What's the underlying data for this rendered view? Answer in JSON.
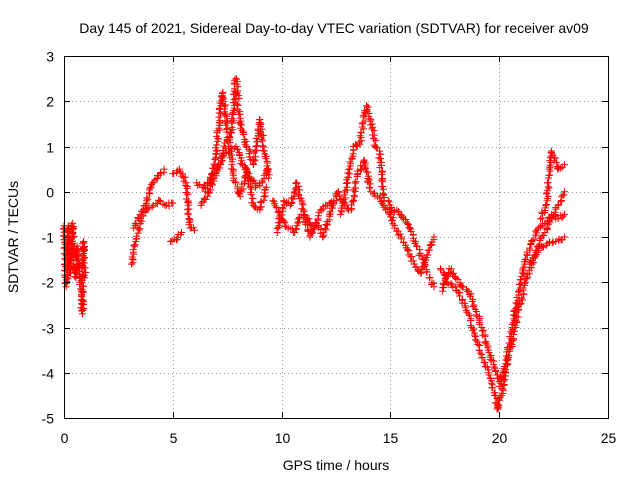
{
  "chart_data": {
    "type": "scatter",
    "title": "Day 145 of 2021, Sidereal Day-to-day VTEC variation (SDTVAR) for receiver av09",
    "xlabel": "GPS time / hours",
    "ylabel": "SDTVAR / TECUs",
    "xlim": [
      0,
      25
    ],
    "ylim": [
      -5,
      3
    ],
    "xticks": [
      0,
      5,
      10,
      15,
      20,
      25
    ],
    "yticks": [
      -5,
      -4,
      -3,
      -2,
      -1,
      0,
      1,
      2,
      3
    ],
    "grid": true,
    "marker": "+",
    "color": "#ff0000",
    "series": [
      {
        "name": "SDTVAR",
        "segments": [
          [
            [
              0.0,
              -0.75
            ],
            [
              0.1,
              -2.1
            ],
            [
              0.15,
              -1.85
            ],
            [
              0.2,
              -0.75
            ],
            [
              0.3,
              -1.8
            ],
            [
              0.4,
              -0.7
            ],
            [
              0.45,
              -1.6
            ],
            [
              0.55,
              -1.9
            ],
            [
              0.6,
              -1.2
            ],
            [
              0.7,
              -1.75
            ],
            [
              0.8,
              -2.2
            ],
            [
              0.85,
              -2.7
            ],
            [
              0.9,
              -1.1
            ],
            [
              0.95,
              -1.9
            ]
          ],
          [
            [
              3.1,
              -1.6
            ],
            [
              3.3,
              -1.1
            ],
            [
              3.5,
              -0.7
            ],
            [
              3.8,
              -0.4
            ],
            [
              4.1,
              -0.3
            ],
            [
              4.4,
              -0.2
            ],
            [
              4.7,
              -0.3
            ],
            [
              5.0,
              -0.25
            ]
          ],
          [
            [
              3.2,
              -0.8
            ],
            [
              3.5,
              -0.5
            ],
            [
              3.8,
              -0.2
            ],
            [
              4.0,
              0.1
            ],
            [
              4.3,
              0.3
            ],
            [
              4.6,
              0.5
            ]
          ],
          [
            [
              4.9,
              -1.1
            ],
            [
              5.2,
              -1.05
            ],
            [
              5.4,
              -0.9
            ]
          ],
          [
            [
              5.0,
              0.4
            ],
            [
              5.3,
              0.5
            ],
            [
              5.6,
              0.2
            ],
            [
              5.8,
              -0.8
            ],
            [
              6.0,
              -0.85
            ]
          ],
          [
            [
              6.1,
              0.2
            ],
            [
              6.4,
              0.1
            ],
            [
              6.7,
              0.2
            ],
            [
              7.0,
              0.5
            ],
            [
              7.3,
              0.8
            ],
            [
              7.6,
              0.9
            ],
            [
              7.9,
              1.0
            ],
            [
              8.2,
              0.6
            ],
            [
              8.5,
              0.4
            ],
            [
              8.8,
              0.1
            ],
            [
              9.1,
              0.2
            ],
            [
              9.4,
              0.5
            ]
          ],
          [
            [
              6.3,
              -0.3
            ],
            [
              6.6,
              -0.1
            ],
            [
              6.9,
              0.3
            ],
            [
              7.2,
              0.6
            ],
            [
              7.5,
              1.2
            ],
            [
              7.7,
              1.3
            ],
            [
              7.9,
              2.5
            ],
            [
              8.1,
              1.5
            ],
            [
              8.4,
              1.0
            ],
            [
              8.7,
              0.6
            ],
            [
              9.0,
              1.6
            ],
            [
              9.2,
              0.9
            ],
            [
              9.4,
              0.3
            ]
          ],
          [
            [
              6.5,
              0.0
            ],
            [
              6.8,
              0.4
            ],
            [
              7.0,
              0.9
            ],
            [
              7.2,
              1.9
            ],
            [
              7.3,
              2.2
            ],
            [
              7.5,
              1.4
            ],
            [
              7.8,
              0.3
            ],
            [
              8.1,
              -0.1
            ],
            [
              8.4,
              0.5
            ],
            [
              8.7,
              -0.3
            ],
            [
              9.0,
              -0.4
            ],
            [
              9.3,
              0.1
            ]
          ],
          [
            [
              9.6,
              -0.2
            ],
            [
              10.0,
              -0.6
            ],
            [
              10.3,
              -0.8
            ],
            [
              10.6,
              -0.9
            ],
            [
              10.9,
              -0.5
            ],
            [
              11.2,
              -0.6
            ],
            [
              11.5,
              -0.8
            ],
            [
              11.8,
              -0.4
            ],
            [
              12.1,
              -0.3
            ],
            [
              12.4,
              -0.2
            ]
          ],
          [
            [
              9.8,
              -0.9
            ],
            [
              10.1,
              -0.2
            ],
            [
              10.4,
              -0.3
            ],
            [
              10.7,
              0.2
            ],
            [
              11.0,
              -0.4
            ],
            [
              11.3,
              -1.0
            ],
            [
              11.6,
              -0.7
            ],
            [
              11.9,
              -1.0
            ],
            [
              12.2,
              -0.5
            ],
            [
              12.6,
              0.0
            ]
          ],
          [
            [
              12.6,
              0.0
            ],
            [
              12.9,
              -0.3
            ],
            [
              13.2,
              -0.4
            ],
            [
              13.5,
              0.4
            ],
            [
              13.8,
              0.7
            ],
            [
              14.1,
              0.0
            ],
            [
              14.4,
              -0.1
            ],
            [
              14.7,
              -0.3
            ]
          ],
          [
            [
              12.7,
              -0.5
            ],
            [
              13.0,
              0.1
            ],
            [
              13.3,
              1.0
            ],
            [
              13.6,
              1.05
            ],
            [
              13.9,
              1.9
            ],
            [
              14.1,
              1.6
            ],
            [
              14.3,
              1.0
            ],
            [
              14.5,
              0.9
            ],
            [
              14.7,
              -0.2
            ]
          ],
          [
            [
              14.7,
              -0.3
            ],
            [
              15.0,
              -0.5
            ],
            [
              15.3,
              -0.4
            ],
            [
              15.6,
              -0.6
            ],
            [
              15.9,
              -0.8
            ],
            [
              16.2,
              -1.2
            ],
            [
              16.5,
              -1.5
            ],
            [
              16.8,
              -1.9
            ],
            [
              17.0,
              -2.1
            ]
          ],
          [
            [
              14.9,
              -0.2
            ],
            [
              15.2,
              -0.8
            ],
            [
              15.5,
              -1.0
            ],
            [
              15.8,
              -1.3
            ],
            [
              16.1,
              -1.6
            ],
            [
              16.4,
              -1.8
            ],
            [
              16.7,
              -1.4
            ],
            [
              17.0,
              -1.0
            ]
          ],
          [
            [
              17.3,
              -1.7
            ],
            [
              17.6,
              -2.0
            ],
            [
              18.0,
              -2.1
            ],
            [
              18.3,
              -2.4
            ],
            [
              18.6,
              -2.7
            ],
            [
              18.9,
              -3.2
            ],
            [
              19.2,
              -3.6
            ],
            [
              19.5,
              -4.0
            ],
            [
              19.8,
              -4.5
            ],
            [
              19.95,
              -4.8
            ]
          ],
          [
            [
              17.4,
              -2.2
            ],
            [
              17.7,
              -1.7
            ],
            [
              18.0,
              -1.9
            ],
            [
              18.3,
              -2.1
            ],
            [
              18.6,
              -2.2
            ],
            [
              18.9,
              -2.6
            ],
            [
              19.2,
              -3.0
            ],
            [
              19.5,
              -3.5
            ],
            [
              19.8,
              -3.9
            ],
            [
              20.0,
              -4.2
            ]
          ],
          [
            [
              19.9,
              -4.8
            ],
            [
              20.1,
              -4.5
            ],
            [
              20.3,
              -4.0
            ],
            [
              20.6,
              -3.3
            ],
            [
              20.9,
              -2.6
            ],
            [
              21.2,
              -2.0
            ],
            [
              21.5,
              -1.6
            ],
            [
              21.8,
              -1.2
            ],
            [
              22.1,
              -0.9
            ],
            [
              22.4,
              -0.6
            ],
            [
              22.7,
              -0.3
            ],
            [
              23.0,
              0.0
            ]
          ],
          [
            [
              20.0,
              -4.3
            ],
            [
              20.3,
              -3.8
            ],
            [
              20.6,
              -3.0
            ],
            [
              20.9,
              -2.2
            ],
            [
              21.2,
              -1.5
            ],
            [
              21.5,
              -1.1
            ],
            [
              21.8,
              -0.8
            ],
            [
              22.1,
              -0.7
            ],
            [
              22.4,
              -0.5
            ],
            [
              22.6,
              -0.6
            ],
            [
              23.0,
              -0.5
            ]
          ],
          [
            [
              21.9,
              -0.6
            ],
            [
              22.2,
              -0.2
            ],
            [
              22.4,
              0.9
            ],
            [
              22.7,
              0.5
            ],
            [
              23.0,
              0.6
            ]
          ],
          [
            [
              21.4,
              -1.6
            ],
            [
              21.8,
              -1.3
            ],
            [
              22.2,
              -1.15
            ],
            [
              22.6,
              -1.1
            ],
            [
              23.0,
              -1.0
            ]
          ]
        ]
      }
    ]
  }
}
